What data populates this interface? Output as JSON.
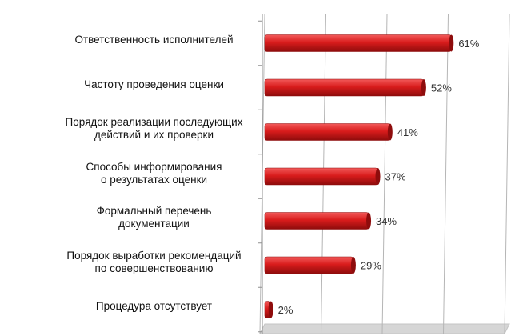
{
  "chart_data": {
    "type": "bar",
    "orientation": "horizontal",
    "categories": [
      "Ответственность исполнителей",
      "Частоту проведения оценки",
      "Порядок реализации последующих действий и их проверки",
      "Способы информирования о результатах оценки",
      "Формальный перечень документации",
      "Порядок выработки рекомендаций по совершенствованию",
      "Процедура отсутствует"
    ],
    "category_lines": [
      [
        "Ответственность исполнителей"
      ],
      [
        "Частоту проведения оценки"
      ],
      [
        "Порядок реализации последующих",
        "действий и их проверки"
      ],
      [
        "Способы информирования",
        "о результатах оценки"
      ],
      [
        "Формальный перечень",
        "документации"
      ],
      [
        "Порядок выработки рекомендаций",
        "по совершенствованию"
      ],
      [
        "Процедура отсутствует"
      ]
    ],
    "values": [
      61,
      52,
      41,
      37,
      34,
      29,
      2
    ],
    "value_labels": [
      "61%",
      "52%",
      "41%",
      "37%",
      "34%",
      "29%",
      "2%"
    ],
    "xlim": [
      0,
      80
    ],
    "x_gridlines": [
      0,
      20,
      40,
      60,
      80
    ],
    "grid": true,
    "legend": "none",
    "title": "",
    "xlabel": "",
    "ylabel": "",
    "colors": {
      "bar": "#d91c1c",
      "bar_dark": "#8e0c0c",
      "bar_light": "#f25a5a",
      "grid": "#b5b5b5",
      "floor": "#d6d6d6"
    }
  }
}
